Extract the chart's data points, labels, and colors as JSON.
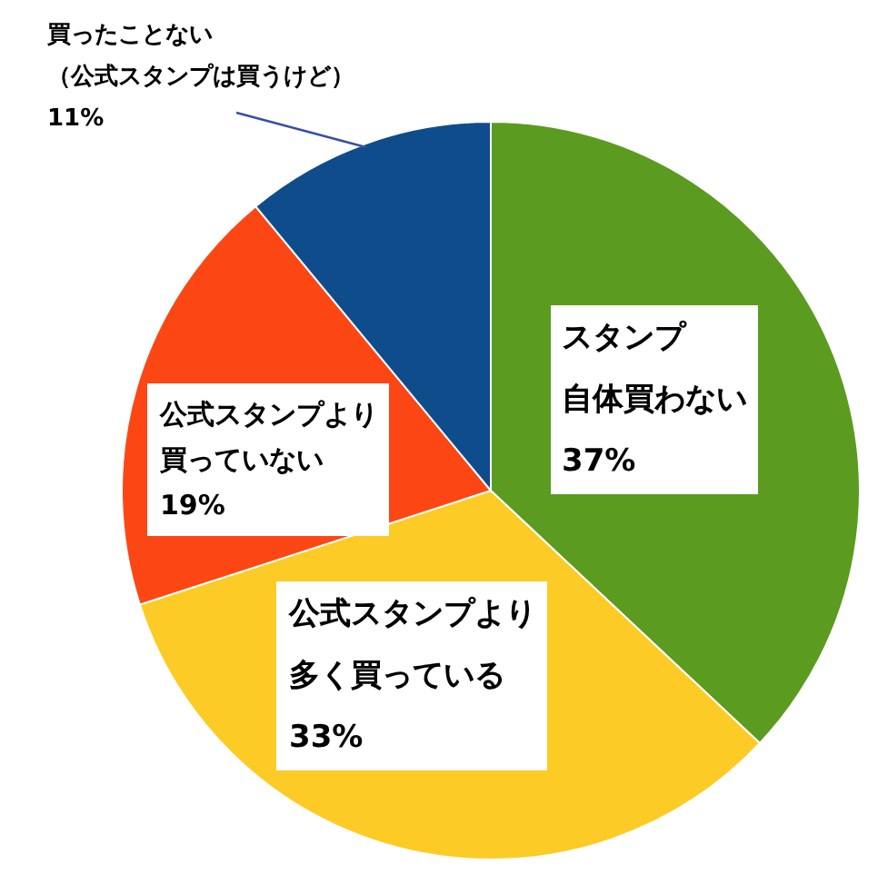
{
  "chart_data": {
    "type": "pie",
    "categories": [
      "スタンプ自体買わない",
      "公式スタンプより多く買っている",
      "公式スタンプより買っていない",
      "買ったことない（公式スタンプは買うけど）"
    ],
    "values": [
      37,
      33,
      19,
      11
    ],
    "colors": [
      "#5b9b1f",
      "#fdcb25",
      "#fc4714",
      "#0f4c8c"
    ],
    "value_labels": [
      "37%",
      "33%",
      "19%",
      "11%"
    ]
  }
}
